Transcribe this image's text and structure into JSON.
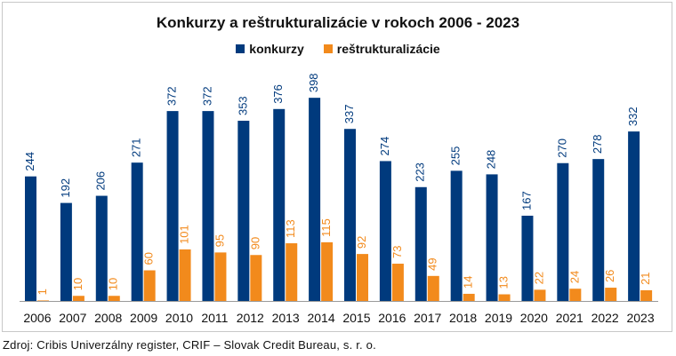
{
  "colors": {
    "konkurzy": "#003a7d",
    "restrukturalizacie": "#f28a1c",
    "axis": "#9a9a9a"
  },
  "source_note": "Zdroj: Cribis Univerzálny register, CRIF – Slovak Credit Bureau, s. r. o.",
  "chart_data": {
    "type": "bar",
    "title": "Konkurzy a reštrukturalizácie v rokoch 2006 - 2023",
    "xlabel": "",
    "ylabel": "",
    "ylim": [
      0,
      440
    ],
    "grid": false,
    "legend_position": "top",
    "categories": [
      "2006",
      "2007",
      "2008",
      "2009",
      "2010",
      "2011",
      "2012",
      "2013",
      "2014",
      "2015",
      "2016",
      "2017",
      "2018",
      "2019",
      "2020",
      "2021",
      "2022",
      "2023"
    ],
    "series": [
      {
        "name": "konkurzy",
        "values": [
          244,
          192,
          206,
          271,
          372,
          372,
          353,
          376,
          398,
          337,
          274,
          223,
          255,
          248,
          167,
          270,
          278,
          332
        ]
      },
      {
        "name": "reštrukturalizácie",
        "values": [
          1,
          10,
          10,
          60,
          101,
          95,
          90,
          113,
          115,
          92,
          73,
          49,
          14,
          13,
          22,
          24,
          26,
          21
        ]
      }
    ]
  }
}
